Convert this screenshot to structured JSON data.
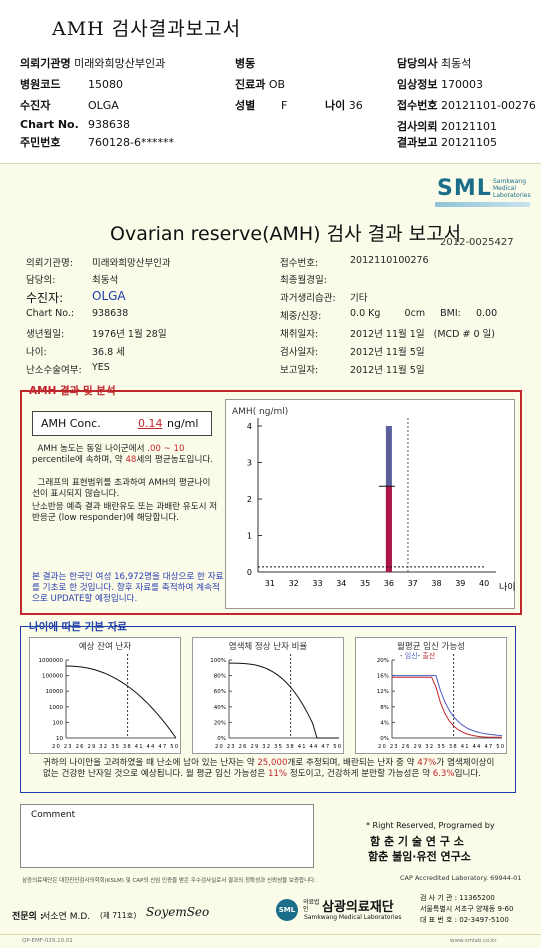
{
  "top": {
    "title": "AMH 검사결과보고서",
    "fields": [
      {
        "key": "의뢰기관명",
        "value": "미래와희망산부인과"
      },
      {
        "key": "병동",
        "value": ""
      },
      {
        "key": "담당의사",
        "value": "최동석"
      },
      {
        "key": "병원코드",
        "value": "15080"
      },
      {
        "key": "진료과",
        "value": "OB"
      },
      {
        "key": "임상정보",
        "value": "170003"
      },
      {
        "key": "수진자",
        "value": "OLGA"
      },
      {
        "key": "성별",
        "value": "F"
      },
      {
        "key": "나이",
        "value": "36"
      },
      {
        "key": "접수번호",
        "value": "20121101-00276"
      },
      {
        "key": "Chart No.",
        "value": "938638"
      },
      {
        "key": "검사의뢰",
        "value": "20121101"
      },
      {
        "key": "주민번호",
        "value": "760128-6******"
      },
      {
        "key": "결과보고",
        "value": "20121105"
      }
    ]
  },
  "report": {
    "logo": "SML",
    "logo_sub": "Samkwang Medical Laboratories",
    "title": "Ovarian reserve(AMH) 검사 결과 보고서",
    "report_no": "2012-0025427",
    "left_info": [
      {
        "key": "의뢰기관명:",
        "value": "미래와희망산부인과"
      },
      {
        "key": "담당의:",
        "value": "최동석"
      },
      {
        "key": "수진자:",
        "value": "OLGA"
      },
      {
        "key": "Chart No.:",
        "value": "938638"
      },
      {
        "key": "생년월일:",
        "value": "1976년 1월 28일"
      },
      {
        "key": "나이:",
        "value": "36.8 세"
      },
      {
        "key": "난소수술여부:",
        "value": "YES"
      }
    ],
    "right_info": [
      {
        "key": "접수번호:",
        "value": "2012110100276"
      },
      {
        "key": "최종월경일:",
        "value": ""
      },
      {
        "key": "과거생리습관:",
        "value": "기타"
      },
      {
        "key": "체중/신장:",
        "value": "0.0 Kg        0cm     BMI:     0.00"
      },
      {
        "key": "채취일자:",
        "value": "2012년 11월 1일   (MCD # 0 일)"
      },
      {
        "key": "검사일자:",
        "value": "2012년 11월 5일"
      },
      {
        "key": "보고일자:",
        "value": "2012년 11월 5일"
      }
    ],
    "amh_section_label": "AMH 결과 및 분석",
    "conc_label": "AMH Conc.",
    "conc_value": "0.14",
    "conc_unit": "ng/ml",
    "para1_a": "AMH 농도는 동일 나이군에서",
    "para1_pct": ".00 ~ 10",
    "para1_b": "percentile에 속하며, 약",
    "para1_age": "48",
    "para1_c": "세의 평균농도입니다.",
    "para2": "그래프의 표현범위를 초과하여 AMH의 평균나이선이 표시되지 않습니다.",
    "para3": "난소반응 예측 결과 배란유도 또는 과배란 유도시 저반응군 (low responder)에 해당합니다.",
    "para4": "본 결과는 한국인 여성 16,972명을 대상으로 한 자료를 기초로 한 것입니다. 향후 자료를 축적하여 계속적으로 UPDATE할 예정입니다.",
    "base_section_label": "나이에 따른 기본 자료",
    "mini1_title": "예상 잔여 난자",
    "mini2_title": "염색체 정상 난자 비율",
    "mini3_title": "월평균 임신 가능성",
    "mini3_legend_a": "임신",
    "mini3_legend_b": "출산",
    "foot_a": "귀하의 나이만을 고려하였을 때 난소에 남아 있는 난자는 약",
    "foot_eggs": "25,000",
    "foot_b": "개로 추정되며, 배란되는 난자 중 약",
    "foot_pct": "47%",
    "foot_c": "가 염색체이상이 없는 건강한 난자일 것으로 예상됩니다. 월 평균 임신 가능성은",
    "foot_preg": "11%",
    "foot_d": "정도이고, 건강하게 분만할 가능성은 약",
    "foot_birth": "6.3%",
    "foot_e": "입니다.",
    "comment_label": "Comment",
    "rights": "* Right Reserved, Programed by",
    "rights_org1": "함 춘 기 술 연 구 소",
    "rights_org2": "함춘 불임·유전 연구소",
    "fine_print": "삼광의료재단은 대한진단검사의학회(KSLM) 및 CAP의 신임 인증을 받은 우수검사실로서 결과의 정확성과 신뢰성을 보증합니다.",
    "cap": "CAP  Accredited  Laboratory.  69944-01",
    "specialist_label": "전문의 :",
    "specialist_name": "서소연 M.D.",
    "specialist_no": "(제 711호)",
    "specialist_sign": "SoyemSeo",
    "foundation": "삼광의료재단",
    "foundation_prefix": "의료법인",
    "foundation_en": "Samkwang Medical Laboratories",
    "contact1": "검 사 기 관 : 11365200",
    "contact2": "서울특별시 서초구 양재동 9-60",
    "contact3": "대 표 번 호 : 02-3497-5100",
    "bottom_left": "QP-EMF-029.10.01",
    "bottom_right": "www.smlab.co.kr"
  },
  "chart_data": {
    "type": "bar",
    "ylabel": "AMH( ng/ml)",
    "xlabel": "나이",
    "categories": [
      "31",
      "32",
      "33",
      "34",
      "35",
      "36",
      "37",
      "38",
      "39",
      "40"
    ],
    "x_ticks": [
      "31",
      "32",
      "33",
      "34",
      "35",
      "36",
      "37",
      "38",
      "39",
      "40"
    ],
    "y_ticks": [
      "0",
      "1",
      "2",
      "3",
      "4"
    ],
    "ylim": [
      0,
      4
    ],
    "series": [
      {
        "values": [
          null,
          null,
          null,
          null,
          null,
          4.0,
          null,
          null,
          null,
          null
        ],
        "color": "#5b5e9a"
      },
      {
        "values": [
          null,
          null,
          null,
          null,
          null,
          2.35,
          null,
          null,
          null,
          null
        ],
        "color": "#b0154a"
      }
    ],
    "patient_level": 0.14,
    "patient_age": 36.8,
    "grid": false
  },
  "mini_charts": [
    {
      "y_ticks": [
        "1000000",
        "100000",
        "10000",
        "1000",
        "100",
        "10"
      ],
      "x_ticks": "20 23 26 29 32 35 38 41 44 47 50"
    },
    {
      "y_ticks": [
        "100%",
        "80%",
        "60%",
        "40%",
        "20%",
        "0%"
      ],
      "x_ticks": "20 23 26 29 32 35 38 41 44 47 50"
    },
    {
      "y_ticks": [
        "20%",
        "16%",
        "12%",
        "8%",
        "4%",
        "0%"
      ],
      "x_ticks": "20 23 26 29 32 35 38 41 44 47 50"
    }
  ]
}
